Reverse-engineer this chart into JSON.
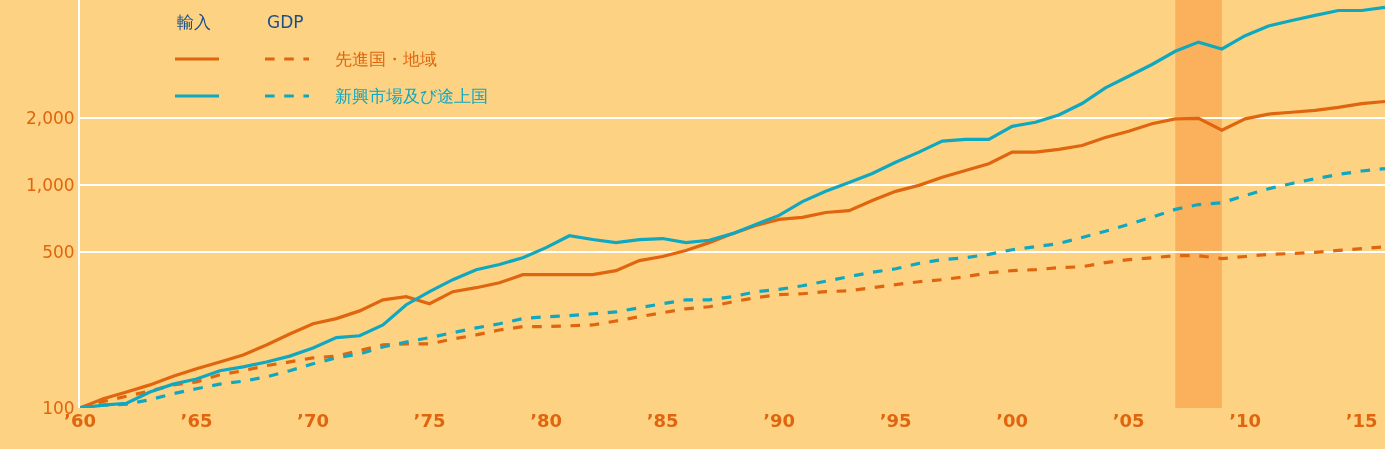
{
  "chart_data": {
    "type": "line",
    "log": true,
    "grid": "y",
    "legend": "top left",
    "marker": "none",
    "annotations": [
      "輸入",
      "GDP"
    ],
    "x": [
      1960,
      1961,
      1962,
      1963,
      1964,
      1965,
      1966,
      1967,
      1968,
      1969,
      1970,
      1971,
      1972,
      1973,
      1974,
      1975,
      1976,
      1977,
      1978,
      1979,
      1980,
      1981,
      1982,
      1983,
      1984,
      1985,
      1986,
      1987,
      1988,
      1989,
      1990,
      1991,
      1992,
      1993,
      1994,
      1995,
      1996,
      1997,
      1998,
      1999,
      2000,
      2001,
      2002,
      2003,
      2004,
      2005,
      2006,
      2007,
      2008,
      2009,
      2010,
      2011,
      2012,
      2013,
      2014,
      2015,
      2016
    ],
    "xlim": [
      1960,
      2016
    ],
    "xticks": [
      {
        "value": 1960,
        "label": "’60"
      },
      {
        "value": 1965,
        "label": "’65"
      },
      {
        "value": 1970,
        "label": "’70"
      },
      {
        "value": 1975,
        "label": "’75"
      },
      {
        "value": 1980,
        "label": "’80"
      },
      {
        "value": 1985,
        "label": "’85"
      },
      {
        "value": 1990,
        "label": "’90"
      },
      {
        "value": 1995,
        "label": "’95"
      },
      {
        "value": 2000,
        "label": "’00"
      },
      {
        "value": 2005,
        "label": "’05"
      },
      {
        "value": 2010,
        "label": "’10"
      },
      {
        "value": 2015,
        "label": "’15"
      }
    ],
    "ylim": [
      100,
      6800
    ],
    "yticks": [
      100,
      500,
      {
        "value": 1000,
        "label": "1,000"
      },
      {
        "value": 2000,
        "label": "2,000"
      }
    ],
    "bands": [
      {
        "axis": "x",
        "from": 2007,
        "to": 2009,
        "color": "#fbb15c"
      }
    ],
    "series": [
      {
        "name": "先進国・地域",
        "color": "#e0650f",
        "line_style": "dashed",
        "values": [
          100,
          107,
          113,
          119,
          127,
          131,
          141,
          147,
          155,
          161,
          168,
          171,
          181,
          192,
          194,
          194,
          204,
          213,
          224,
          232,
          232,
          234,
          236,
          246,
          257,
          268,
          279,
          285,
          300,
          313,
          323,
          326,
          333,
          336,
          347,
          358,
          369,
          377,
          389,
          405,
          414,
          418,
          427,
          431,
          450,
          464,
          473,
          483,
          483,
          469,
          479,
          490,
          494,
          500,
          510,
          520,
          530
        ]
      },
      {
        "color": "#e0650f",
        "line_style": "solid",
        "values": [
          100,
          110,
          118,
          127,
          139,
          150,
          161,
          173,
          192,
          215,
          239,
          252,
          273,
          306,
          316,
          294,
          333,
          347,
          365,
          397,
          397,
          397,
          397,
          414,
          459,
          479,
          510,
          553,
          607,
          660,
          703,
          718,
          755,
          770,
          855,
          940,
          1000,
          1087,
          1166,
          1250,
          1410,
          1410,
          1450,
          1510,
          1640,
          1750,
          1890,
          1990,
          2000,
          1770,
          1990,
          2090,
          2130,
          2170,
          2240,
          2330,
          2380
        ]
      },
      {
        "color": "#0fa8c0",
        "line_style": "solid",
        "values": [
          100,
          103,
          105,
          118,
          128,
          135,
          147,
          153,
          161,
          171,
          186,
          207,
          211,
          236,
          291,
          333,
          377,
          418,
          441,
          473,
          525,
          594,
          571,
          553,
          571,
          577,
          553,
          567,
          607,
          668,
          733,
          845,
          940,
          1030,
          1130,
          1270,
          1410,
          1580,
          1610,
          1610,
          1840,
          1920,
          2070,
          2330,
          2740,
          3090,
          3490,
          4000,
          4400,
          4100,
          4700,
          5200,
          5500,
          5800,
          6100,
          6100,
          6300
        ]
      },
      {
        "name": "新興市場及び途上国",
        "color": "#0fa8c0",
        "line_style": "dashed",
        "values": [
          100,
          103,
          104,
          109,
          116,
          122,
          128,
          132,
          138,
          147,
          158,
          168,
          175,
          188,
          198,
          207,
          218,
          229,
          239,
          252,
          257,
          260,
          265,
          270,
          282,
          294,
          306,
          306,
          316,
          333,
          341,
          354,
          371,
          389,
          407,
          422,
          446,
          464,
          473,
          490,
          514,
          530,
          548,
          583,
          622,
          668,
          720,
          780,
          820,
          835,
          900,
          965,
          1020,
          1070,
          1120,
          1160,
          1190
        ]
      }
    ]
  }
}
